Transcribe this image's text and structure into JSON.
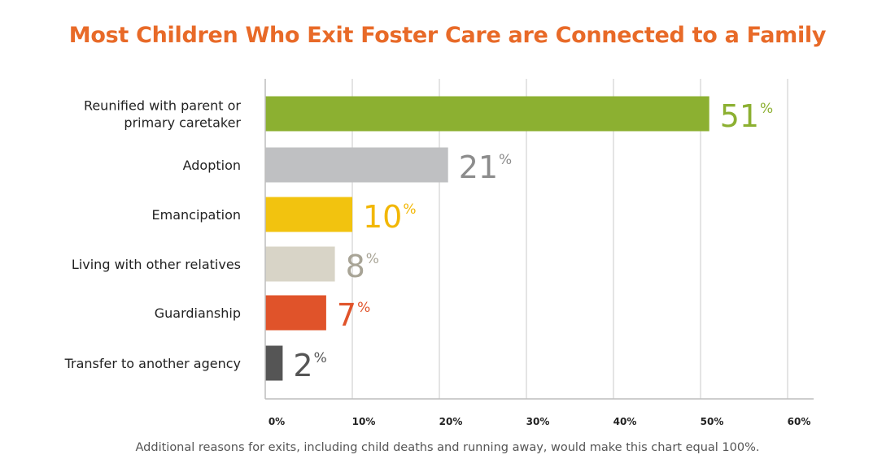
{
  "chart_data": {
    "type": "bar",
    "orientation": "horizontal",
    "title": "Most Children Who Exit Foster Care are Connected to a Family",
    "categories": [
      [
        "Reunified with parent or",
        "primary caretaker"
      ],
      [
        "Adoption"
      ],
      [
        "Emancipation"
      ],
      [
        "Living with other relatives"
      ],
      [
        "Guardianship"
      ],
      [
        "Transfer to another agency"
      ]
    ],
    "values": [
      51,
      21,
      10,
      8,
      7,
      2
    ],
    "value_labels": [
      "51",
      "21",
      "10",
      "8",
      "7",
      "2"
    ],
    "value_suffix": "%",
    "colors": [
      "#8cb031",
      "#bfc0c2",
      "#f2c30f",
      "#d8d4c7",
      "#e0532a",
      "#555555"
    ],
    "label_colors": [
      "#8cb031",
      "#8c8c8c",
      "#f2b705",
      "#a8a496",
      "#e0532a",
      "#555555"
    ],
    "xticks": [
      "0%",
      "10%",
      "20%",
      "30%",
      "40%",
      "50%",
      "60%"
    ],
    "xlim": [
      0,
      60
    ],
    "grid": true,
    "xlabel": "",
    "ylabel": ""
  },
  "footnote": "Additional reasons for exits, including child deaths and running away, would make this chart equal 100%."
}
